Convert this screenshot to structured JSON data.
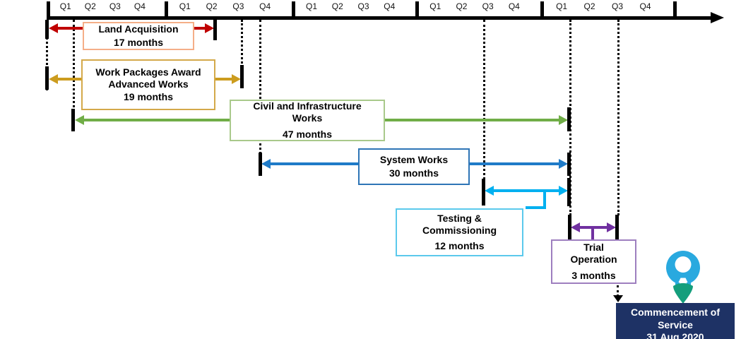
{
  "timeline": {
    "years": [
      {
        "quarters": [
          "Q1",
          "Q2",
          "Q3",
          "Q4"
        ]
      },
      {
        "quarters": [
          "Q1",
          "Q2",
          "Q3",
          "Q4"
        ]
      },
      {
        "quarters": [
          "Q1",
          "Q2",
          "Q3",
          "Q4"
        ]
      },
      {
        "quarters": [
          "Q1",
          "Q2",
          "Q3",
          "Q4"
        ]
      },
      {
        "quarters": [
          "Q1",
          "Q2",
          "Q3",
          "Q4"
        ]
      }
    ]
  },
  "tasks": [
    {
      "name": "land-acquisition",
      "line1": "Land Acquisition",
      "line2": "",
      "duration": "17 months",
      "arrow_color": "#C00000",
      "border_color": "#F5AE88"
    },
    {
      "name": "work-packages-award",
      "line1": "Work Packages Award",
      "line2": "Advanced Works",
      "duration": "19 months",
      "arrow_color": "#CC9C1E",
      "border_color": "#D4A94A"
    },
    {
      "name": "civil-infrastructure-works",
      "line1": "Civil and Infrastructure",
      "line2": "Works",
      "duration": "47 months",
      "arrow_color": "#70AD47",
      "border_color": "#A9C98B"
    },
    {
      "name": "system-works",
      "line1": "System Works",
      "line2": "",
      "duration": "30 months",
      "arrow_color": "#1F7BC8",
      "border_color": "#2E75B6"
    },
    {
      "name": "testing-commissioning",
      "line1": "Testing &",
      "line2": "Commissioning",
      "duration": "12 months",
      "arrow_color": "#00B0F0",
      "border_color": "#5BC9EC"
    },
    {
      "name": "trial-operation",
      "line1": "Trial",
      "line2": "Operation",
      "duration": "3 months",
      "arrow_color": "#7030A0",
      "border_color": "#9E7FBF"
    }
  ],
  "milestone": {
    "line1": "Commencement of",
    "line2": "Service",
    "date": "31 Aug 2020",
    "bg_color": "#1E3265",
    "text_color": "#FFFFFF"
  },
  "pin_icon": {
    "blue": "#29A9DF",
    "teal": "#149E7C"
  }
}
